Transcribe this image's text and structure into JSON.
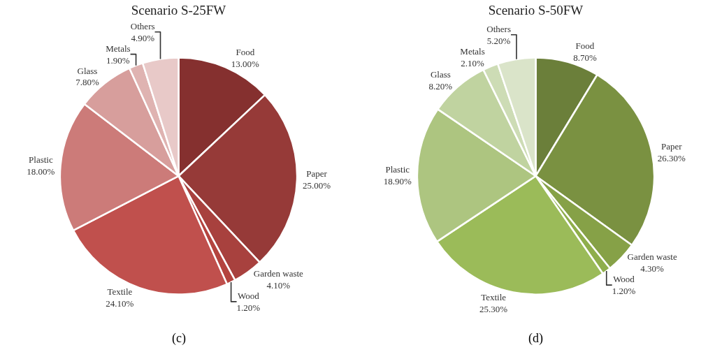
{
  "chart_data": [
    {
      "type": "pie",
      "title": "Scenario S-25FW",
      "categories": [
        "Food",
        "Paper",
        "Garden waste",
        "Wood",
        "Textile",
        "Plastic",
        "Glass",
        "Metals",
        "Others"
      ],
      "values": [
        13,
        25,
        4.1,
        1.2,
        24.1,
        18,
        7.8,
        1.9,
        4.9
      ],
      "value_labels": [
        "13.00%",
        "25.00%",
        "4.10%",
        "1.20%",
        "24.10%",
        "18.00%",
        "7.80%",
        "1.90%",
        "4.90%"
      ],
      "colors": [
        "#85302f",
        "#963a38",
        "#a8413e",
        "#b4443f",
        "#c0504d",
        "#cc7b79",
        "#d79e9c",
        "#dfb3b1",
        "#e8c9c8"
      ],
      "legend": false,
      "annotations": [
        "(c)"
      ]
    },
    {
      "type": "pie",
      "title": "Scenario S-50FW",
      "categories": [
        "Food",
        "Paper",
        "Garden waste",
        "Wood",
        "Textile",
        "Plastic",
        "Glass",
        "Metals",
        "Others"
      ],
      "values": [
        8.7,
        26.3,
        4.3,
        1.2,
        25.3,
        18.9,
        8.2,
        2.1,
        5.2
      ],
      "value_labels": [
        "8.70%",
        "26.30%",
        "4.30%",
        "1.20%",
        "25.30%",
        "18.90%",
        "8.20%",
        "2.10%",
        "5.20%"
      ],
      "colors": [
        "#6b7f3a",
        "#7a9141",
        "#86a147",
        "#8fae4c",
        "#9bbb59",
        "#adc580",
        "#c0d3a0",
        "#cddcb5",
        "#dae4c9"
      ],
      "legend": false,
      "annotations": [
        "(d)"
      ]
    }
  ]
}
